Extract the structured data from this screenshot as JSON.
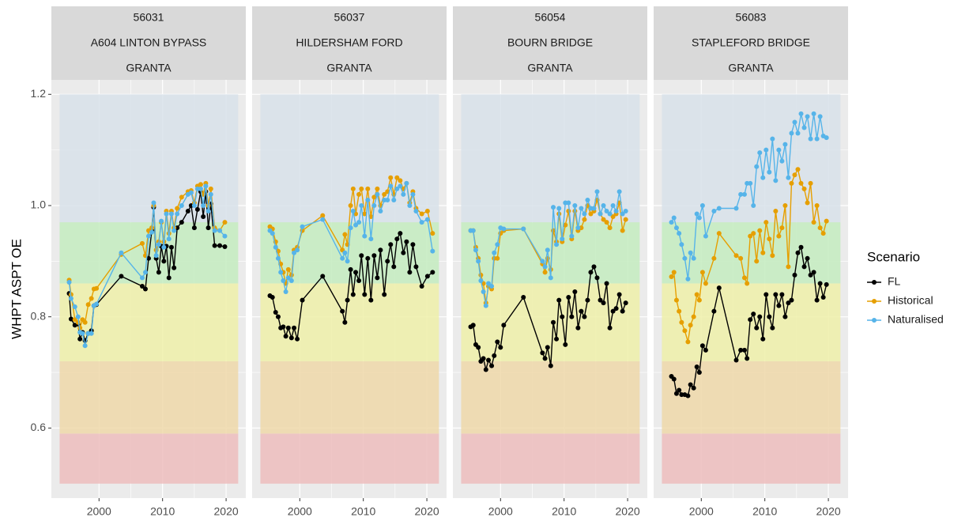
{
  "chart_data": [
    {
      "type": "line",
      "title": [
        "56031",
        "A604 LINTON BYPASS",
        "GRANTA"
      ],
      "ylabel": "WHPT ASPT OE",
      "legend_title": "Scenario",
      "legend": "right",
      "ytick_labels": true,
      "xlim": [
        1992.5,
        2023.1
      ],
      "ylim": [
        0.474,
        1.226
      ],
      "xticks": [
        2000,
        2010,
        2020
      ],
      "yticks": [
        0.6,
        0.8,
        {
          "value": 1,
          "label": "1.0"
        },
        1.2
      ],
      "grid": true,
      "band_xlim": [
        1993.8,
        2021.9
      ],
      "bands": [
        {
          "from": 0.5,
          "to": 0.59,
          "color": "#edbdbd"
        },
        {
          "from": 0.59,
          "to": 0.72,
          "color": "#efd8a9"
        },
        {
          "from": 0.72,
          "to": 0.86,
          "color": "#eff0a9"
        },
        {
          "from": 0.86,
          "to": 0.97,
          "color": "#c4ecc0"
        },
        {
          "from": 0.97,
          "to": 1.2,
          "color": "#d8e2ea"
        }
      ],
      "x": [
        1995.3,
        1995.6,
        1996.2,
        1996.7,
        1997.0,
        1997.4,
        1997.8,
        1998.3,
        1998.8,
        1999.2,
        1999.6,
        2003.5,
        2006.8,
        2007.3,
        2007.8,
        2008.3,
        2008.6,
        2009.0,
        2009.4,
        2009.8,
        2010.2,
        2010.6,
        2011.0,
        2011.4,
        2011.8,
        2012.3,
        2013.0,
        2014.0,
        2014.5,
        2015.0,
        2015.5,
        2016.0,
        2016.4,
        2016.8,
        2017.2,
        2017.6,
        2018.2,
        2019.0,
        2019.8
      ],
      "series": [
        {
          "name": "FL",
          "color": "#000000",
          "values": [
            0.842,
            0.796,
            0.785,
            0.787,
            0.76,
            0.772,
            0.757,
            0.77,
            0.775,
            0.82,
            0.822,
            0.873,
            0.855,
            0.85,
            0.905,
            0.955,
            0.997,
            0.905,
            0.88,
            0.927,
            0.9,
            0.927,
            0.87,
            0.925,
            0.888,
            0.96,
            0.97,
            0.99,
            1.0,
            0.96,
            0.993,
            1.025,
            0.98,
            1.025,
            0.96,
            1.003,
            0.928,
            0.928,
            0.926
          ]
        },
        {
          "name": "Historical",
          "color": "#e69f00",
          "values": [
            0.866,
            0.84,
            0.795,
            0.79,
            0.78,
            0.795,
            0.79,
            0.822,
            0.833,
            0.85,
            0.851,
            0.912,
            0.932,
            0.91,
            0.955,
            0.96,
            1.0,
            0.92,
            0.935,
            0.97,
            0.935,
            0.99,
            0.95,
            0.99,
            0.96,
            0.995,
            1.015,
            1.025,
            1.027,
            1.005,
            1.035,
            1.038,
            1.02,
            1.04,
            1.0,
            1.03,
            0.96,
            0.955,
            0.97
          ]
        },
        {
          "name": "Naturalised",
          "color": "#56b4e9",
          "values": [
            0.862,
            0.833,
            0.818,
            0.8,
            0.772,
            0.77,
            0.748,
            0.77,
            0.77,
            0.82,
            0.823,
            0.915,
            0.87,
            0.88,
            0.945,
            0.952,
            1.005,
            0.91,
            0.93,
            0.972,
            0.925,
            0.985,
            0.94,
            0.985,
            0.955,
            0.985,
            1.0,
            1.02,
            1.023,
            1.0,
            1.03,
            1.03,
            1.0,
            1.035,
            0.99,
            1.02,
            0.955,
            0.955,
            0.945
          ]
        }
      ]
    },
    {
      "type": "line",
      "title": [
        "56037",
        "HILDERSHAM FORD",
        "GRANTA"
      ],
      "xlim": [
        1992.5,
        2023.1
      ],
      "ylim": [
        0.474,
        1.226
      ],
      "xticks": [
        2000,
        2010,
        2020
      ],
      "yticks": [
        0.6,
        0.8,
        1,
        1.2
      ],
      "grid": true,
      "band_xlim": [
        1993.8,
        2021.9
      ],
      "bands": [
        {
          "from": 0.5,
          "to": 0.59,
          "color": "#edbdbd"
        },
        {
          "from": 0.59,
          "to": 0.72,
          "color": "#efd8a9"
        },
        {
          "from": 0.72,
          "to": 0.86,
          "color": "#eff0a9"
        },
        {
          "from": 0.86,
          "to": 0.97,
          "color": "#c4ecc0"
        },
        {
          "from": 0.97,
          "to": 1.2,
          "color": "#d8e2ea"
        }
      ],
      "x": [
        1995.3,
        1995.7,
        1996.2,
        1996.6,
        1997.0,
        1997.4,
        1997.8,
        1998.2,
        1998.7,
        1999.1,
        1999.6,
        2000.4,
        2003.6,
        2006.7,
        2007.1,
        2007.5,
        2008.0,
        2008.4,
        2008.8,
        2009.3,
        2009.7,
        2010.2,
        2010.7,
        2011.2,
        2011.7,
        2012.2,
        2012.7,
        2013.3,
        2013.8,
        2014.3,
        2014.8,
        2015.3,
        2015.8,
        2016.3,
        2016.8,
        2017.3,
        2017.8,
        2018.3,
        2019.2,
        2020.1,
        2020.9
      ],
      "series": [
        {
          "name": "FL",
          "color": "#000000",
          "values": [
            0.838,
            0.835,
            0.808,
            0.8,
            0.78,
            0.782,
            0.765,
            0.78,
            0.762,
            0.78,
            0.76,
            0.83,
            0.873,
            0.81,
            0.79,
            0.83,
            0.885,
            0.84,
            0.88,
            0.865,
            0.91,
            0.84,
            0.905,
            0.83,
            0.91,
            0.87,
            0.92,
            0.84,
            0.9,
            0.93,
            0.89,
            0.94,
            0.95,
            0.915,
            0.935,
            0.88,
            0.93,
            0.89,
            0.855,
            0.873,
            0.88
          ]
        },
        {
          "name": "Historical",
          "color": "#e69f00",
          "values": [
            0.962,
            0.958,
            0.935,
            0.918,
            0.895,
            0.88,
            0.86,
            0.885,
            0.875,
            0.92,
            0.925,
            0.955,
            0.982,
            0.92,
            0.948,
            0.93,
            1.0,
            1.03,
            0.985,
            1.02,
            1.03,
            0.985,
            1.03,
            0.98,
            1.015,
            1.03,
            1.0,
            1.02,
            1.025,
            1.05,
            1.02,
            1.05,
            1.045,
            1.03,
            1.04,
            1.005,
            1.025,
            0.995,
            0.985,
            0.99,
            0.95
          ]
        },
        {
          "name": "Naturalised",
          "color": "#56b4e9",
          "values": [
            0.955,
            0.95,
            0.925,
            0.905,
            0.88,
            0.865,
            0.845,
            0.87,
            0.865,
            0.915,
            0.92,
            0.962,
            0.975,
            0.905,
            0.915,
            0.9,
            0.96,
            0.99,
            0.965,
            0.97,
            1.0,
            0.945,
            1.01,
            0.94,
            1.0,
            1.02,
            0.99,
            1.01,
            1.01,
            1.035,
            1.01,
            1.03,
            1.035,
            1.02,
            1.04,
            1.0,
            1.02,
            0.99,
            0.97,
            0.975,
            0.918
          ]
        }
      ]
    },
    {
      "type": "line",
      "title": [
        "56054",
        "BOURN BRIDGE",
        "GRANTA"
      ],
      "xlim": [
        1992.5,
        2023.1
      ],
      "ylim": [
        0.474,
        1.226
      ],
      "xticks": [
        2000,
        2010,
        2020
      ],
      "yticks": [
        0.6,
        0.8,
        1,
        1.2
      ],
      "grid": true,
      "band_xlim": [
        1993.8,
        2021.9
      ],
      "bands": [
        {
          "from": 0.5,
          "to": 0.59,
          "color": "#edbdbd"
        },
        {
          "from": 0.59,
          "to": 0.72,
          "color": "#efd8a9"
        },
        {
          "from": 0.72,
          "to": 0.86,
          "color": "#eff0a9"
        },
        {
          "from": 0.86,
          "to": 0.97,
          "color": "#c4ecc0"
        },
        {
          "from": 0.97,
          "to": 1.2,
          "color": "#d8e2ea"
        }
      ],
      "x": [
        1995.3,
        1995.7,
        1996.1,
        1996.5,
        1996.9,
        1997.3,
        1997.7,
        1998.1,
        1998.6,
        1999.0,
        1999.5,
        2000.0,
        2000.5,
        2003.6,
        2006.6,
        2007.0,
        2007.4,
        2007.9,
        2008.3,
        2008.8,
        2009.2,
        2009.7,
        2010.2,
        2010.7,
        2011.2,
        2011.7,
        2012.2,
        2012.7,
        2013.2,
        2013.7,
        2014.2,
        2014.7,
        2015.2,
        2015.7,
        2016.2,
        2016.7,
        2017.2,
        2017.7,
        2018.2,
        2018.7,
        2019.2,
        2019.7
      ],
      "series": [
        {
          "name": "FL",
          "color": "#000000",
          "values": [
            0.782,
            0.785,
            0.75,
            0.745,
            0.72,
            0.725,
            0.705,
            0.722,
            0.712,
            0.73,
            0.755,
            0.745,
            0.785,
            0.835,
            0.735,
            0.725,
            0.745,
            0.712,
            0.79,
            0.76,
            0.83,
            0.8,
            0.75,
            0.835,
            0.8,
            0.845,
            0.78,
            0.81,
            0.8,
            0.83,
            0.88,
            0.89,
            0.87,
            0.83,
            0.825,
            0.86,
            0.78,
            0.81,
            0.815,
            0.84,
            0.81,
            0.825
          ]
        },
        {
          "name": "Historical",
          "color": "#e69f00",
          "values": [
            0.955,
            0.955,
            0.925,
            0.905,
            0.875,
            0.86,
            0.825,
            0.855,
            0.85,
            0.905,
            0.905,
            0.95,
            0.955,
            0.958,
            0.895,
            0.88,
            0.905,
            0.885,
            0.955,
            0.935,
            0.985,
            0.935,
            0.965,
            0.99,
            0.94,
            0.99,
            0.955,
            0.96,
            0.975,
            1.0,
            0.985,
            0.99,
            1.01,
            0.985,
            0.975,
            0.97,
            0.96,
            0.98,
            0.985,
            1.005,
            0.955,
            0.975
          ]
        },
        {
          "name": "Naturalised",
          "color": "#56b4e9",
          "values": [
            0.955,
            0.955,
            0.92,
            0.9,
            0.865,
            0.845,
            0.82,
            0.86,
            0.855,
            0.915,
            0.93,
            0.96,
            0.958,
            0.958,
            0.9,
            0.89,
            0.92,
            0.87,
            0.997,
            0.93,
            0.995,
            0.94,
            1.005,
            1.005,
            0.945,
            1.0,
            0.96,
            0.995,
            0.985,
            1.01,
            0.995,
            0.995,
            1.025,
            0.985,
            1.0,
            0.99,
            0.985,
            1.0,
            0.99,
            1.025,
            0.985,
            0.99
          ]
        }
      ]
    },
    {
      "type": "line",
      "title": [
        "56083",
        "STAPLEFORD BRIDGE",
        "GRANTA"
      ],
      "xlim": [
        1992.5,
        2023.1
      ],
      "ylim": [
        0.474,
        1.226
      ],
      "xticks": [
        2000,
        2010,
        2020
      ],
      "yticks": [
        0.6,
        0.8,
        1,
        1.2
      ],
      "grid": true,
      "band_xlim": [
        1993.8,
        2021.9
      ],
      "bands": [
        {
          "from": 0.5,
          "to": 0.59,
          "color": "#edbdbd"
        },
        {
          "from": 0.59,
          "to": 0.72,
          "color": "#efd8a9"
        },
        {
          "from": 0.72,
          "to": 0.86,
          "color": "#eff0a9"
        },
        {
          "from": 0.86,
          "to": 0.97,
          "color": "#c4ecc0"
        },
        {
          "from": 0.97,
          "to": 1.2,
          "color": "#d8e2ea"
        }
      ],
      "x": [
        1995.3,
        1995.7,
        1996.1,
        1996.5,
        1996.9,
        1997.4,
        1997.9,
        1998.3,
        1998.8,
        1999.3,
        1999.7,
        2000.2,
        2000.7,
        2002.0,
        2002.8,
        2005.5,
        2006.2,
        2006.8,
        2007.2,
        2007.7,
        2008.2,
        2008.7,
        2009.2,
        2009.7,
        2010.2,
        2010.7,
        2011.2,
        2011.7,
        2012.2,
        2012.7,
        2013.2,
        2013.7,
        2014.2,
        2014.7,
        2015.2,
        2015.7,
        2016.2,
        2016.7,
        2017.2,
        2017.7,
        2018.2,
        2018.7,
        2019.2,
        2019.7
      ],
      "series": [
        {
          "name": "FL",
          "color": "#000000",
          "values": [
            0.693,
            0.688,
            0.662,
            0.668,
            0.66,
            0.66,
            0.658,
            0.678,
            0.672,
            0.71,
            0.7,
            0.748,
            0.74,
            0.81,
            0.852,
            0.722,
            0.74,
            0.74,
            0.725,
            0.795,
            0.805,
            0.78,
            0.8,
            0.76,
            0.84,
            0.8,
            0.78,
            0.84,
            0.82,
            0.84,
            0.8,
            0.825,
            0.83,
            0.875,
            0.915,
            0.925,
            0.89,
            0.905,
            0.875,
            0.88,
            0.83,
            0.86,
            0.835,
            0.858
          ]
        },
        {
          "name": "Historical",
          "color": "#e69f00",
          "values": [
            0.872,
            0.88,
            0.83,
            0.81,
            0.79,
            0.775,
            0.755,
            0.785,
            0.8,
            0.84,
            0.83,
            0.88,
            0.86,
            0.905,
            0.95,
            0.91,
            0.905,
            0.87,
            0.86,
            0.945,
            0.95,
            0.9,
            0.955,
            0.915,
            0.97,
            0.94,
            0.91,
            0.99,
            0.945,
            0.96,
            1.0,
            0.89,
            1.04,
            1.055,
            1.065,
            1.04,
            1.03,
            1.005,
            1.04,
            0.97,
            1.0,
            0.96,
            0.95,
            0.972
          ]
        },
        {
          "name": "Naturalised",
          "color": "#56b4e9",
          "values": [
            0.97,
            0.978,
            0.96,
            0.95,
            0.93,
            0.905,
            0.868,
            0.915,
            0.905,
            0.985,
            0.978,
            1.0,
            0.945,
            0.99,
            0.995,
            0.995,
            1.02,
            1.02,
            1.04,
            1.04,
            1.0,
            1.07,
            1.095,
            1.05,
            1.1,
            1.06,
            1.12,
            1.045,
            1.1,
            1.08,
            1.11,
            1.05,
            1.13,
            1.15,
            1.13,
            1.165,
            1.14,
            1.16,
            1.12,
            1.165,
            1.12,
            1.16,
            1.125,
            1.122
          ]
        }
      ]
    }
  ]
}
